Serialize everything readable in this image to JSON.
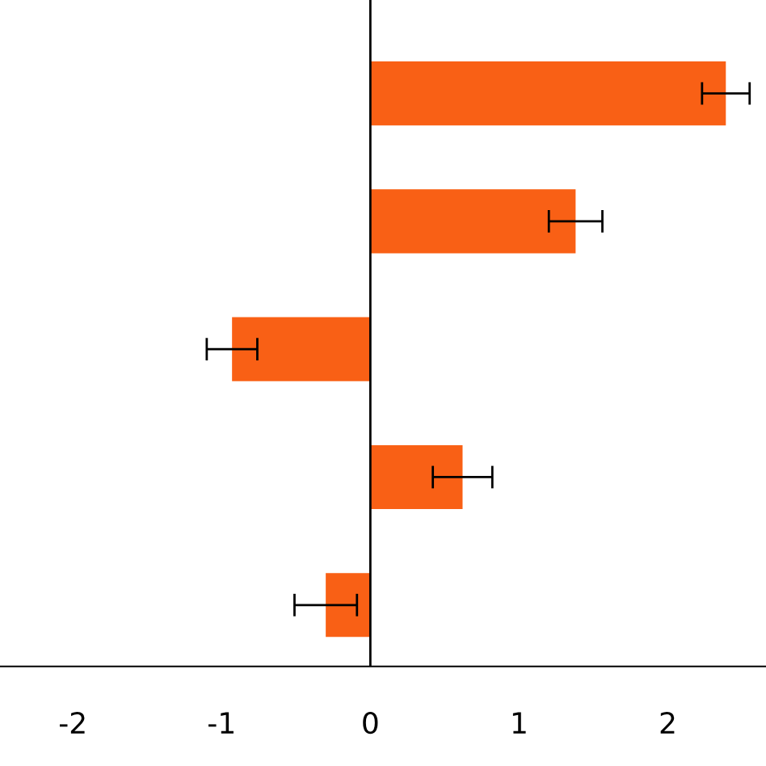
{
  "chart_data": {
    "type": "bar",
    "orientation": "horizontal",
    "categories": [
      null,
      null,
      null,
      null,
      null
    ],
    "values": [
      2.39,
      1.38,
      -0.93,
      0.62,
      -0.3
    ],
    "errors": [
      0.16,
      0.18,
      0.17,
      0.2,
      0.21
    ],
    "color": "#f96015",
    "xlim": [
      -2.49,
      2.66
    ],
    "xticks": [
      -2,
      -1,
      0,
      1,
      2
    ],
    "ref_lines": [
      {
        "axis": "x",
        "value": 0,
        "color": "#000000"
      }
    ],
    "legend": false
  }
}
